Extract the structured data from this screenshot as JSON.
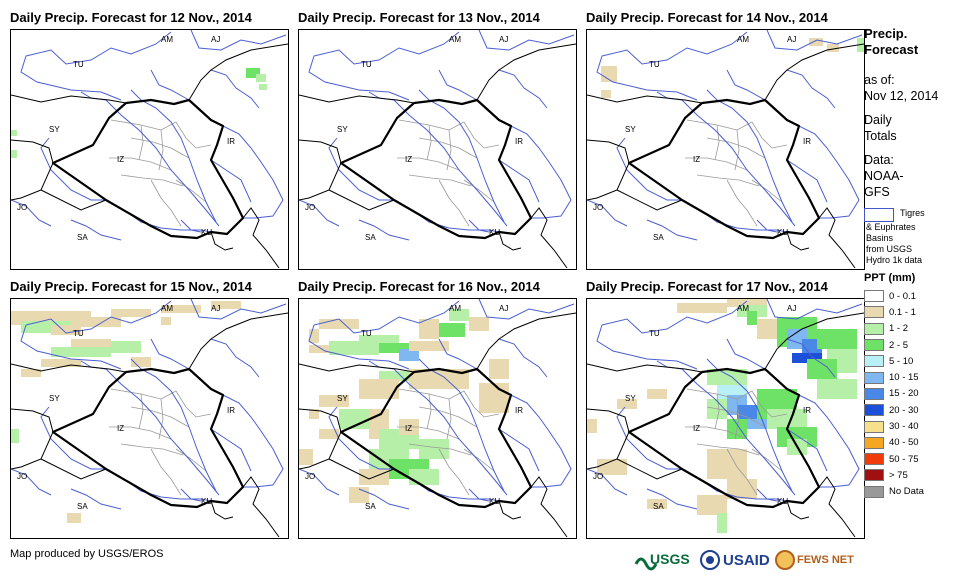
{
  "panels": [
    {
      "title": "Daily Precip. Forecast for 12 Nov., 2014"
    },
    {
      "title": "Daily Precip. Forecast for 13 Nov., 2014"
    },
    {
      "title": "Daily Precip. Forecast for 14 Nov., 2014"
    },
    {
      "title": "Daily Precip. Forecast for 15 Nov., 2014"
    },
    {
      "title": "Daily Precip. Forecast for 16 Nov., 2014"
    },
    {
      "title": "Daily Precip. Forecast for 17 Nov., 2014"
    }
  ],
  "country_labels": [
    "AM",
    "AJ",
    "TU",
    "SY",
    "IZ",
    "IR",
    "JO",
    "SA",
    "KU"
  ],
  "sidebar": {
    "title_line1": "Precip.",
    "title_line2": "Forecast",
    "asof_label": "as of:",
    "asof_date": "Nov 12, 2014",
    "daily_line1": "Daily",
    "daily_line2": "Totals",
    "data_line1": "Data:",
    "data_line2": "NOAA-",
    "data_line3": "GFS",
    "basin_line1": "Tigres",
    "basin_line2": "& Euphrates",
    "basin_line3": "Basins",
    "basin_line4": "from USGS",
    "basin_line5": "Hydro 1k data",
    "ppt_title": "PPT (mm)"
  },
  "legend": [
    {
      "label": "0 - 0.1",
      "color": "#ffffff"
    },
    {
      "label": "0.1 - 1",
      "color": "#e8d9b0"
    },
    {
      "label": "1 - 2",
      "color": "#b6f0a8"
    },
    {
      "label": "2 - 5",
      "color": "#6ee266"
    },
    {
      "label": "5 - 10",
      "color": "#b8f0f6"
    },
    {
      "label": "10 - 15",
      "color": "#7fb8f0"
    },
    {
      "label": "15 - 20",
      "color": "#4a88e8"
    },
    {
      "label": "20 - 30",
      "color": "#1d50d8"
    },
    {
      "label": "30 - 40",
      "color": "#f6e08c"
    },
    {
      "label": "40 - 50",
      "color": "#f5a623"
    },
    {
      "label": "50 - 75",
      "color": "#f03c0a"
    },
    {
      "label": "> 75",
      "color": "#a01010"
    },
    {
      "label": "No Data",
      "color": "#999999"
    }
  ],
  "footer": {
    "credit": "Map produced by USGS/EROS",
    "logo_usgs": "USGS",
    "logo_usaid": "USAID",
    "logo_fews": "FEWS NET"
  }
}
